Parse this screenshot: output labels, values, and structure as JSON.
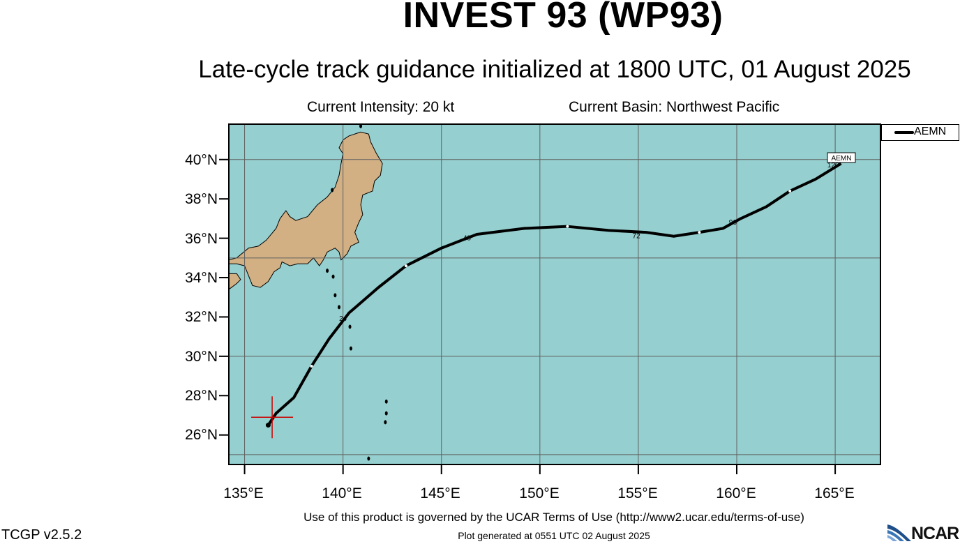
{
  "title": "INVEST 93 (WP93)",
  "subtitle": "Late-cycle track guidance initialized at 1800 UTC, 01 August 2025",
  "current_intensity": "Current Intensity: 20 kt",
  "current_basin": "Current Basin: Northwest Pacific",
  "legend": {
    "model": "AEMN",
    "color": "#000000"
  },
  "map": {
    "ocean_color": "#96cfcf",
    "land_color": "#d2b084",
    "grid_color": "#606060",
    "lon_range": [
      134.2,
      167.3
    ],
    "lat_range": [
      24.5,
      41.8
    ],
    "lon_ticks": [
      "135°E",
      "140°E",
      "145°E",
      "150°E",
      "155°E",
      "160°E",
      "165°E"
    ],
    "lat_ticks": [
      "40°N",
      "38°N",
      "36°N",
      "34°N",
      "32°N",
      "30°N",
      "28°N",
      "26°N"
    ],
    "lon_tick_values": [
      135,
      140,
      145,
      150,
      155,
      160,
      165
    ],
    "lat_tick_values": [
      40,
      38,
      36,
      34,
      32,
      30,
      28,
      26
    ]
  },
  "current_position": {
    "lon": 136.4,
    "lat": 26.9,
    "marker_color": "#cc0000"
  },
  "track": {
    "model": "AEMN",
    "end_label": "AEMN",
    "points": [
      {
        "lon": 136.2,
        "lat": 26.5
      },
      {
        "lon": 136.6,
        "lat": 27.1
      },
      {
        "lon": 137.5,
        "lat": 27.9
      },
      {
        "lon": 138.4,
        "lat": 29.5
      },
      {
        "lon": 139.3,
        "lat": 30.9
      },
      {
        "lon": 140.3,
        "lat": 32.2
      },
      {
        "lon": 141.8,
        "lat": 33.5
      },
      {
        "lon": 143.2,
        "lat": 34.6
      },
      {
        "lon": 145.0,
        "lat": 35.5
      },
      {
        "lon": 146.8,
        "lat": 36.2
      },
      {
        "lon": 149.2,
        "lat": 36.5
      },
      {
        "lon": 151.4,
        "lat": 36.6
      },
      {
        "lon": 153.5,
        "lat": 36.4
      },
      {
        "lon": 155.4,
        "lat": 36.3
      },
      {
        "lon": 156.8,
        "lat": 36.1
      },
      {
        "lon": 158.1,
        "lat": 36.3
      },
      {
        "lon": 159.3,
        "lat": 36.5
      },
      {
        "lon": 160.2,
        "lat": 37.0
      },
      {
        "lon": 161.5,
        "lat": 37.6
      },
      {
        "lon": 162.7,
        "lat": 38.4
      },
      {
        "lon": 164.0,
        "lat": 39.0
      },
      {
        "lon": 165.3,
        "lat": 39.8
      }
    ],
    "hour_labels": [
      {
        "text": "24",
        "lon": 140.0,
        "lat": 31.8
      },
      {
        "text": "48",
        "lon": 146.3,
        "lat": 35.9
      },
      {
        "text": "72",
        "lon": 154.9,
        "lat": 36.0
      },
      {
        "text": "96",
        "lon": 159.8,
        "lat": 36.7
      },
      {
        "text": "120",
        "lon": 164.9,
        "lat": 39.6
      }
    ]
  },
  "terms": "Use of this product is governed by the UCAR Terms of Use (http://www2.ucar.edu/terms-of-use)",
  "version": "TCGP v2.5.2",
  "generated": "Plot generated at 0551 UTC   02 August 2025",
  "logo_text": "NCAR"
}
